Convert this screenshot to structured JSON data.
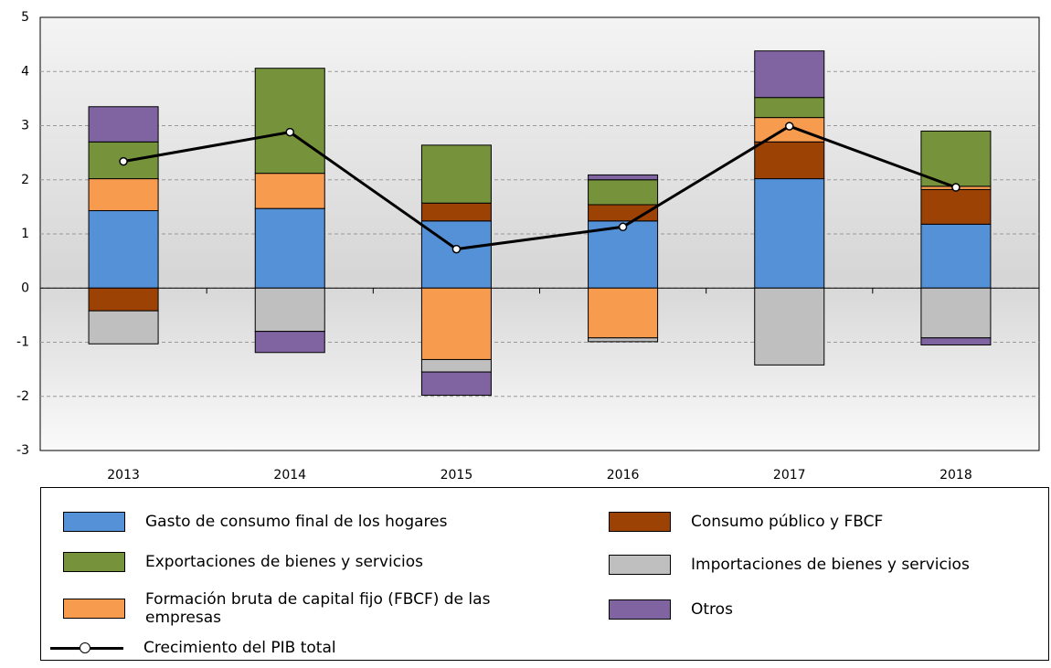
{
  "chart_data": {
    "type": "bar",
    "stacked": true,
    "categories": [
      "2013",
      "2014",
      "2015",
      "2016",
      "2017",
      "2018"
    ],
    "series": [
      {
        "name": "Gasto de consumo final de los hogares",
        "color": "#5591d6",
        "values": [
          1.43,
          1.47,
          1.24,
          1.24,
          2.02,
          1.18
        ]
      },
      {
        "name": "Consumo público y FBCF",
        "color": "#9c4205",
        "values": [
          -0.42,
          0,
          0.33,
          0.3,
          0.68,
          0.64
        ]
      },
      {
        "name": "Formación bruta de capital fijo (FBCF) de las empresas",
        "color": "#f79b4f",
        "values": [
          0.59,
          0.65,
          -1.32,
          -0.92,
          0.45,
          0.06
        ]
      },
      {
        "name": "Exportaciones de bienes y servicios",
        "color": "#76933c",
        "values": [
          0.68,
          1.94,
          1.07,
          0.46,
          0.37,
          1.02
        ]
      },
      {
        "name": "Importaciones de bienes y servicios",
        "color": "#bfbfbf",
        "values": [
          -0.61,
          -0.8,
          -0.23,
          -0.07,
          -1.42,
          -0.92
        ]
      },
      {
        "name": "Otros",
        "color": "#8064a2",
        "values": [
          0.65,
          -0.39,
          -0.43,
          0.09,
          0.86,
          -0.13
        ]
      },
      {
        "name": "Crecimiento del PIB total",
        "type": "line",
        "color": "#000000",
        "values": [
          2.34,
          2.88,
          0.72,
          1.13,
          2.99,
          1.86
        ]
      }
    ],
    "ylim": [
      -3,
      5
    ],
    "yticks": [
      -3,
      -2,
      -1,
      0,
      1,
      2,
      3,
      4,
      5
    ],
    "grid": true
  }
}
